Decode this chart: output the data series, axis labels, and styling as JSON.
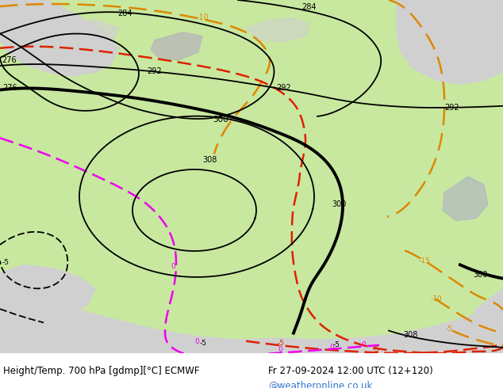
{
  "title_left": "Height/Temp. 700 hPa [gdmp][°C] ECMWF",
  "title_right": "Fr 27-09-2024 12:00 UTC (12+120)",
  "credit": "@weatheronline.co.uk",
  "bg_outside": "#d0d0d0",
  "bg_land": "#c8e8a0",
  "bg_sea": "#b8c8d8",
  "title_fontsize": 8.5,
  "credit_color": "#3377cc",
  "geo_color": "#000000",
  "geo_lw_thick": 2.8,
  "geo_lw_thin": 1.3,
  "temp_orange_color": "#dd8800",
  "temp_red_color": "#dd2200",
  "temp_pink_color": "#ee00ee",
  "temp_lw": 1.8,
  "fig_width": 6.34,
  "fig_height": 4.9,
  "dpi": 100
}
